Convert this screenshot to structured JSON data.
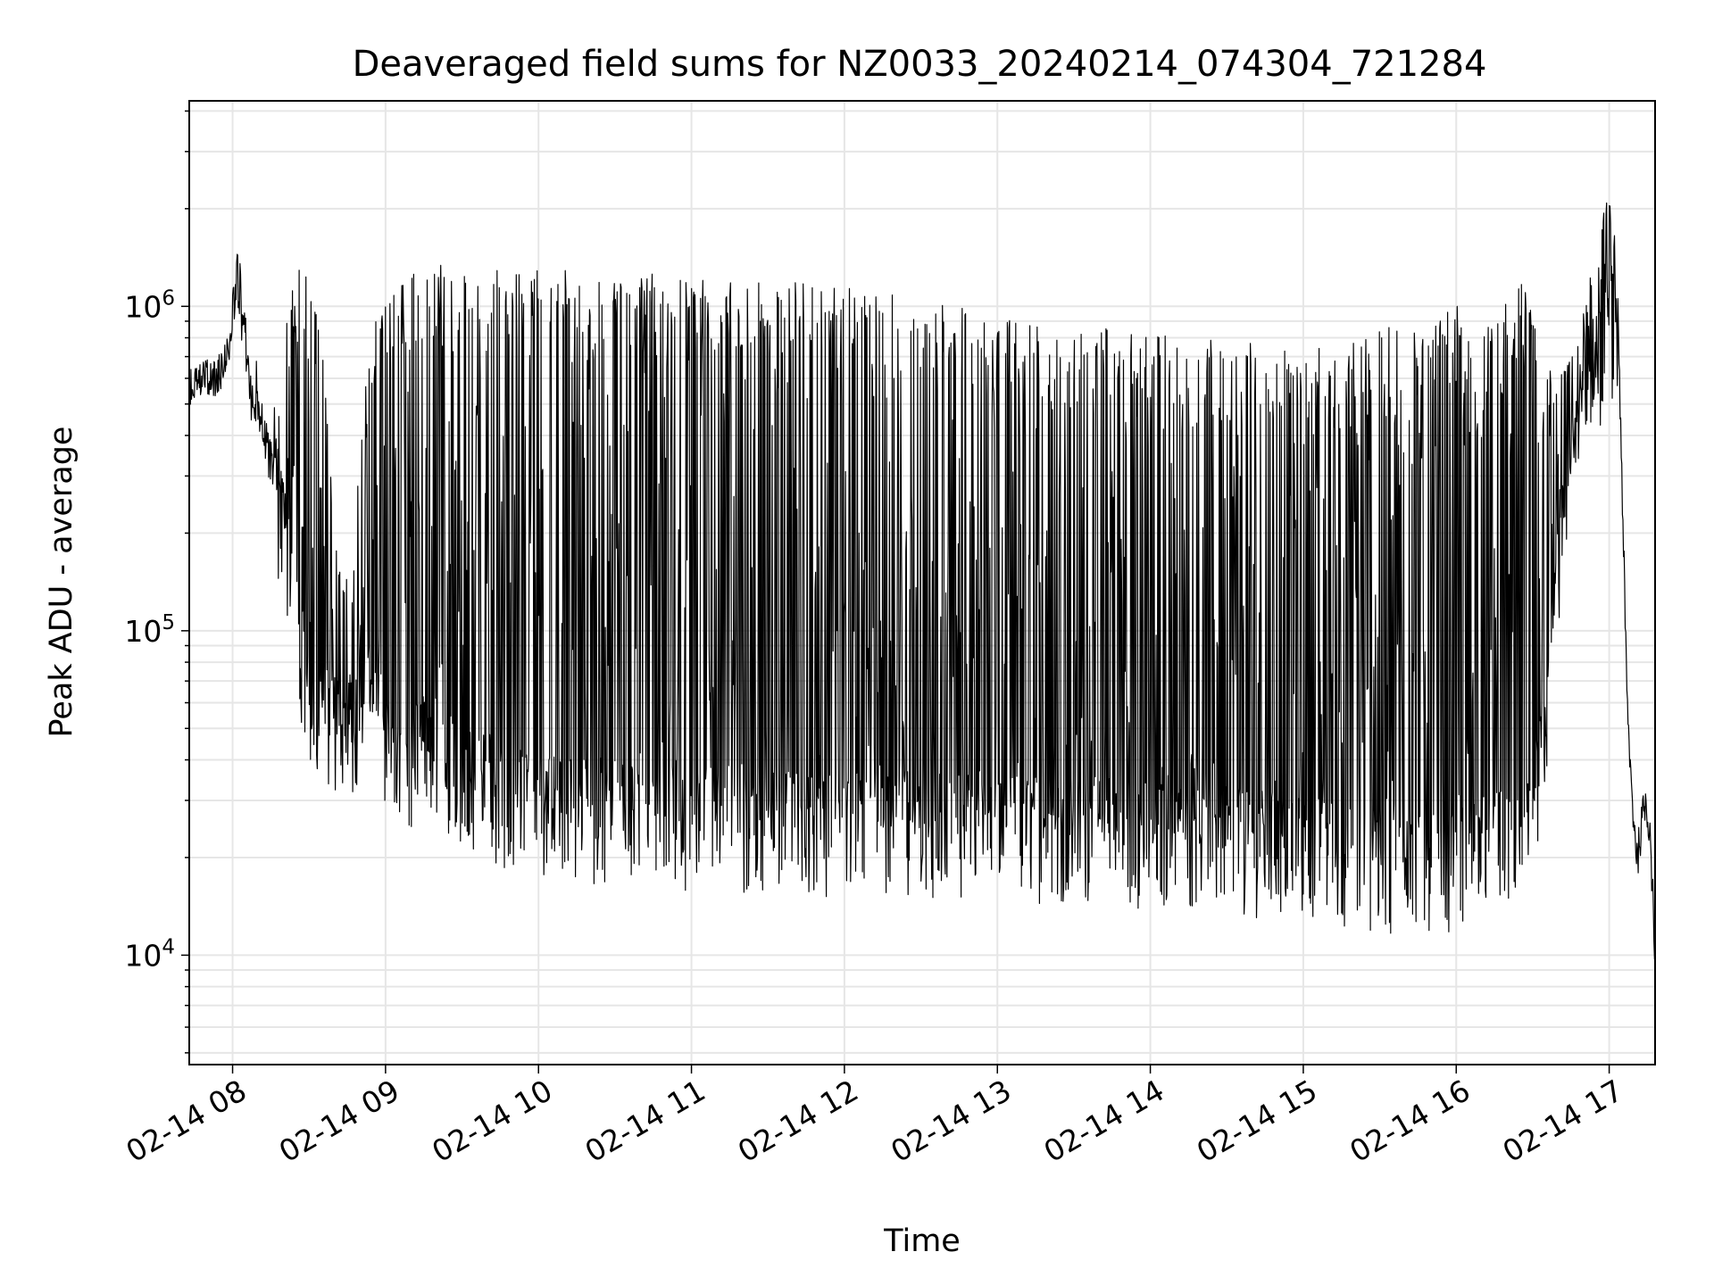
{
  "chart_data": {
    "type": "line",
    "title": "Deaveraged field sums for NZ0033_20240214_074304_721284",
    "xlabel": "Time",
    "ylabel": "Peak ADU - average",
    "yscale": "log",
    "grid": true,
    "legend": "none",
    "line_color": "#000000",
    "grid_color": "#e6e6e6",
    "xlim": [
      "2024-02-14 07:43",
      "2024-02-14 17:18"
    ],
    "ylim": [
      4600,
      4300000
    ],
    "x_tick_labels": [
      {
        "t": "2024-02-14 08:00",
        "label": "02-14 08"
      },
      {
        "t": "2024-02-14 09:00",
        "label": "02-14 09"
      },
      {
        "t": "2024-02-14 10:00",
        "label": "02-14 10"
      },
      {
        "t": "2024-02-14 11:00",
        "label": "02-14 11"
      },
      {
        "t": "2024-02-14 12:00",
        "label": "02-14 12"
      },
      {
        "t": "2024-02-14 13:00",
        "label": "02-14 13"
      },
      {
        "t": "2024-02-14 14:00",
        "label": "02-14 14"
      },
      {
        "t": "2024-02-14 15:00",
        "label": "02-14 15"
      },
      {
        "t": "2024-02-14 16:00",
        "label": "02-14 16"
      },
      {
        "t": "2024-02-14 17:00",
        "label": "02-14 17"
      }
    ],
    "y_tick_labels": [
      {
        "value": 10000,
        "base": "10",
        "exp": "4"
      },
      {
        "value": 100000,
        "base": "10",
        "exp": "5"
      },
      {
        "value": 1000000,
        "base": "10",
        "exp": "6"
      }
    ],
    "series": [
      {
        "t": [
          "2024-02-14 07:43",
          "2024-02-14 07:50",
          "2024-02-14 07:55",
          "2024-02-14 07:58",
          "2024-02-14 08:02",
          "2024-02-14 08:06",
          "2024-02-14 08:10",
          "2024-02-14 08:15",
          "2024-02-14 08:20",
          "2024-02-14 08:25",
          "2024-02-14 08:28",
          "2024-02-14 08:32",
          "2024-02-14 08:35",
          "2024-02-14 08:40",
          "2024-02-14 08:45",
          "2024-02-14 08:50",
          "2024-02-14 08:55",
          "2024-02-14 09:00",
          "2024-02-14 09:05",
          "2024-02-14 09:10",
          "2024-02-14 09:15",
          "2024-02-14 09:20",
          "2024-02-14 09:30",
          "2024-02-14 09:45",
          "2024-02-14 10:00",
          "2024-02-14 10:30",
          "2024-02-14 11:00",
          "2024-02-14 11:30",
          "2024-02-14 12:00",
          "2024-02-14 12:30",
          "2024-02-14 13:00",
          "2024-02-14 13:30",
          "2024-02-14 14:00",
          "2024-02-14 14:30",
          "2024-02-14 15:00",
          "2024-02-14 15:30",
          "2024-02-14 15:45",
          "2024-02-14 16:00",
          "2024-02-14 16:10",
          "2024-02-14 16:20",
          "2024-02-14 16:25",
          "2024-02-14 16:30",
          "2024-02-14 16:35",
          "2024-02-14 16:40",
          "2024-02-14 16:45",
          "2024-02-14 16:50",
          "2024-02-14 16:55",
          "2024-02-14 17:00",
          "2024-02-14 17:03",
          "2024-02-14 17:05",
          "2024-02-14 17:07",
          "2024-02-14 17:09",
          "2024-02-14 17:11",
          "2024-02-14 17:14",
          "2024-02-14 17:16",
          "2024-02-14 17:18"
        ],
        "baseline": [
          580000,
          600000,
          620000,
          700000,
          1200000,
          500000,
          420000,
          300000,
          200000,
          100000,
          70000,
          60000,
          60000,
          50000,
          45000,
          60000,
          90000,
          40000,
          35000,
          40000,
          42000,
          38000,
          35000,
          30000,
          28000,
          27000,
          26000,
          26000,
          25000,
          25000,
          24000,
          24000,
          23000,
          22000,
          21000,
          19000,
          18000,
          20000,
          21000,
          22000,
          23000,
          25000,
          50000,
          150000,
          300000,
          400000,
          600000,
          900000,
          800000,
          300000,
          60000,
          30000,
          20000,
          30000,
          25000,
          10000
        ],
        "peak": [
          580000,
          600000,
          620000,
          700000,
          1500000,
          700000,
          600000,
          400000,
          900000,
          1200000,
          1300000,
          1000000,
          800000,
          200000,
          150000,
          400000,
          1000000,
          1000000,
          1100000,
          1200000,
          1300000,
          1300000,
          1350000,
          1300000,
          1250000,
          1200000,
          1200000,
          1150000,
          1100000,
          1000000,
          900000,
          850000,
          800000,
          750000,
          700000,
          800000,
          900000,
          1000000,
          900000,
          1000000,
          1200000,
          900000,
          700000,
          600000,
          700000,
          1000000,
          1500000,
          2200000,
          1500000,
          300000,
          60000,
          30000,
          20000,
          30000,
          25000,
          10000
        ]
      }
    ]
  }
}
